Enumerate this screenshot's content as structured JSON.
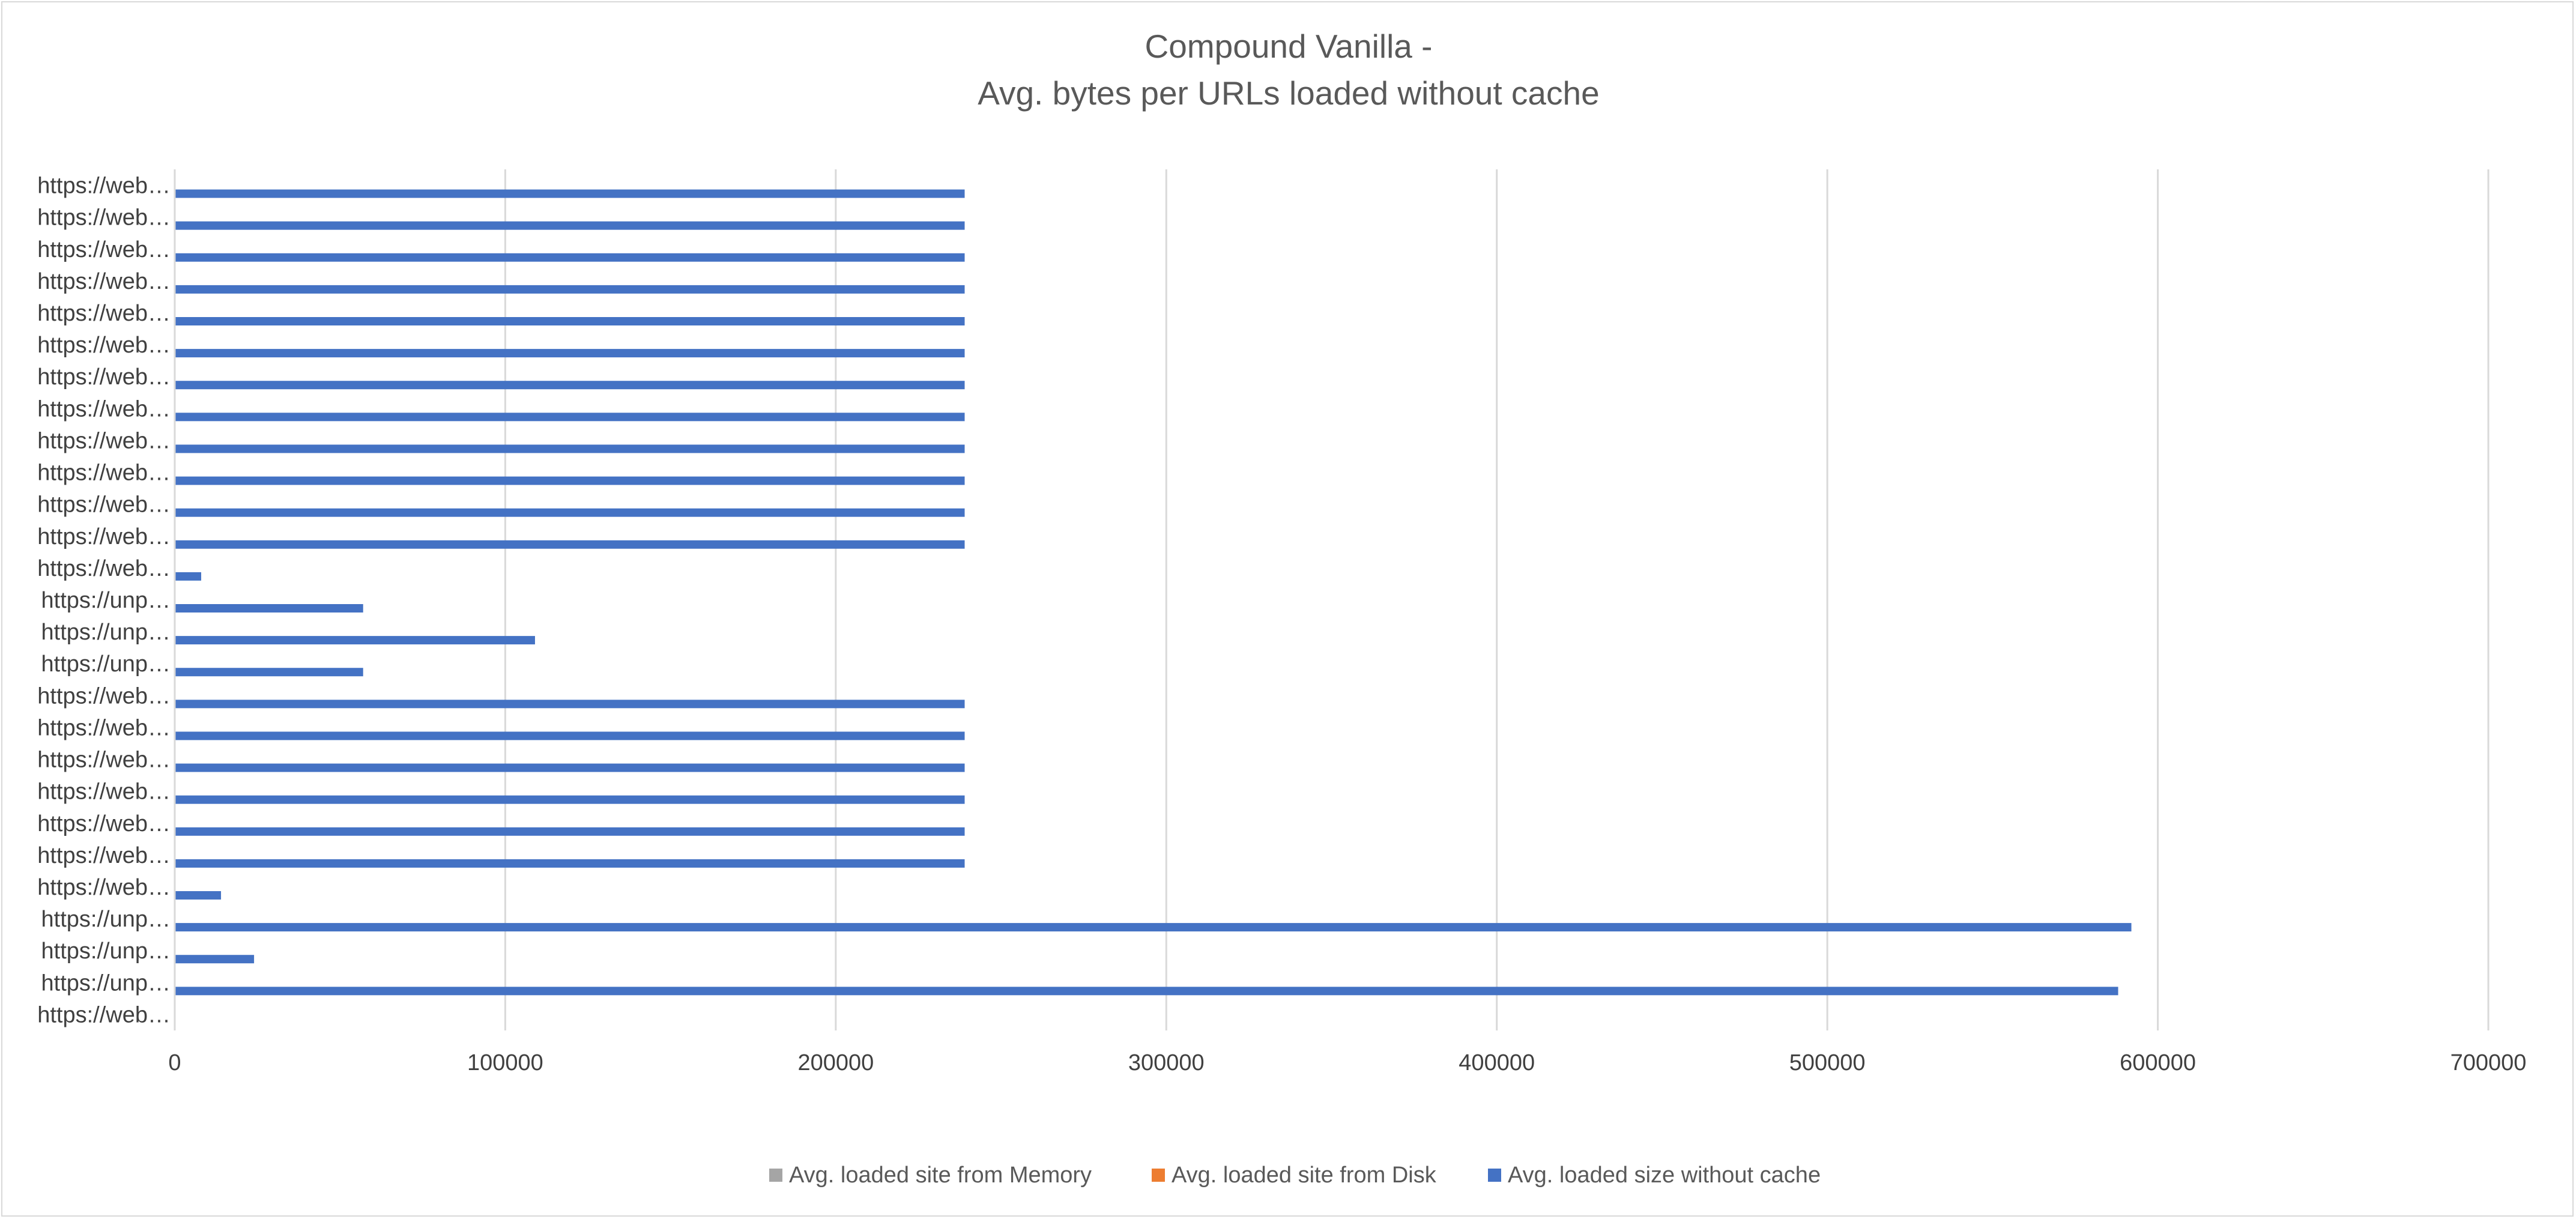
{
  "chart_data": {
    "type": "bar",
    "orientation": "horizontal",
    "title": "Compound Vanilla -\nAvg. bytes per URLs loaded without cache",
    "title_lines": [
      "Compound Vanilla -",
      "Avg. bytes per URLs loaded without cache"
    ],
    "xlim": [
      0,
      700000
    ],
    "x_ticks": [
      "0",
      "100000",
      "200000",
      "300000",
      "400000",
      "500000",
      "600000",
      "700000"
    ],
    "grid": true,
    "legend_position": "bottom",
    "categories": [
      "https://web…",
      "https://web…",
      "https://web…",
      "https://web…",
      "https://web…",
      "https://web…",
      "https://web…",
      "https://web…",
      "https://web…",
      "https://web…",
      "https://web…",
      "https://web…",
      "https://web…",
      "https://unp…",
      "https://unp…",
      "https://unp…",
      "https://web…",
      "https://web…",
      "https://web…",
      "https://web…",
      "https://web…",
      "https://web…",
      "https://web…",
      "https://unp…",
      "https://unp…",
      "https://unp…",
      "https://web…"
    ],
    "series": [
      {
        "name": "Avg. loaded site from Memory",
        "color": "#a5a5a5",
        "values": [
          0,
          0,
          0,
          0,
          0,
          0,
          0,
          0,
          0,
          0,
          0,
          0,
          0,
          0,
          0,
          0,
          0,
          0,
          0,
          0,
          0,
          0,
          0,
          0,
          0,
          0,
          0
        ]
      },
      {
        "name": "Avg. loaded site from Disk",
        "color": "#ed7d31",
        "values": [
          0,
          0,
          0,
          0,
          0,
          0,
          0,
          0,
          0,
          0,
          0,
          0,
          0,
          0,
          0,
          0,
          0,
          0,
          0,
          0,
          0,
          0,
          0,
          0,
          0,
          0,
          0
        ]
      },
      {
        "name": "Avg. loaded size without cache",
        "color": "#4472c4",
        "values": [
          239000,
          239000,
          239000,
          239000,
          239000,
          239000,
          239000,
          239000,
          239000,
          239000,
          239000,
          239000,
          8000,
          57000,
          109000,
          57000,
          239000,
          239000,
          239000,
          239000,
          239000,
          239000,
          14000,
          592000,
          24000,
          588000,
          0
        ]
      }
    ]
  }
}
